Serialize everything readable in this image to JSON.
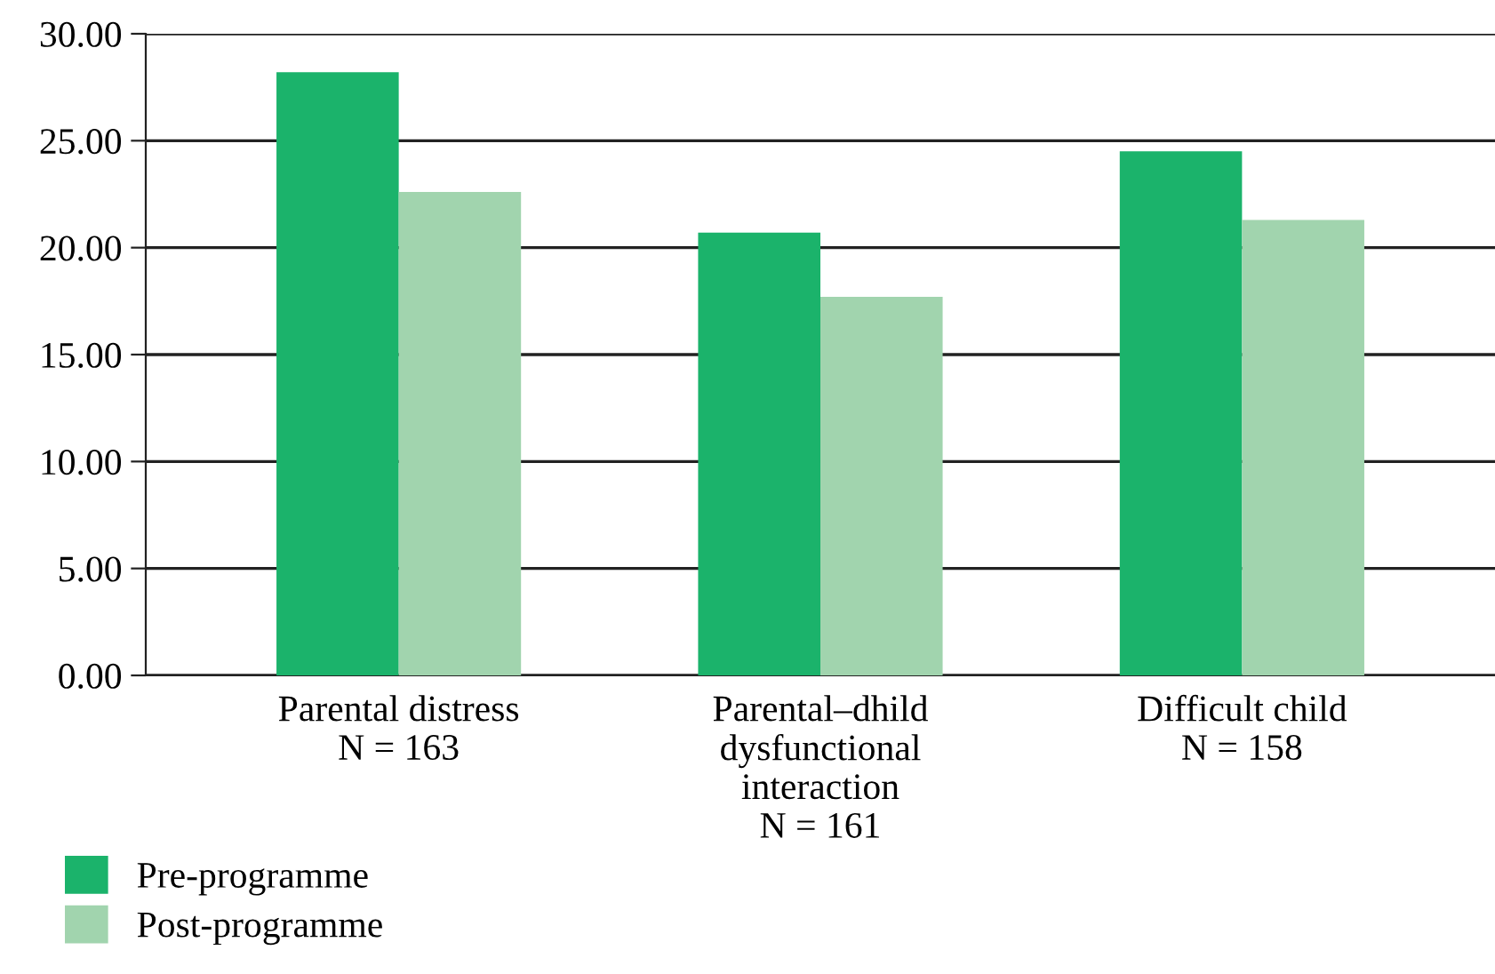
{
  "chart_data": {
    "type": "bar",
    "categories": [
      "Parental distress\nN = 163",
      "Parental–dhild\ndysfunctional\ninteraction\nN = 161",
      "Difficult child\nN = 158"
    ],
    "series": [
      {
        "name": "Pre-programme",
        "color": "#1bb36b",
        "values": [
          28.2,
          20.7,
          24.5
        ]
      },
      {
        "name": "Post-programme",
        "color": "#a1d4ae",
        "values": [
          22.6,
          17.7,
          21.3
        ]
      }
    ],
    "ylim": [
      0,
      30
    ],
    "yticks": [
      {
        "value": 0,
        "label": "0.00"
      },
      {
        "value": 5,
        "label": "5.00"
      },
      {
        "value": 10,
        "label": "10.00"
      },
      {
        "value": 15,
        "label": "15.00"
      },
      {
        "value": 20,
        "label": "20.00"
      },
      {
        "value": 25,
        "label": "25.00"
      },
      {
        "value": 30,
        "label": "30.00"
      }
    ],
    "grid": "y",
    "legend": "bottom left"
  }
}
